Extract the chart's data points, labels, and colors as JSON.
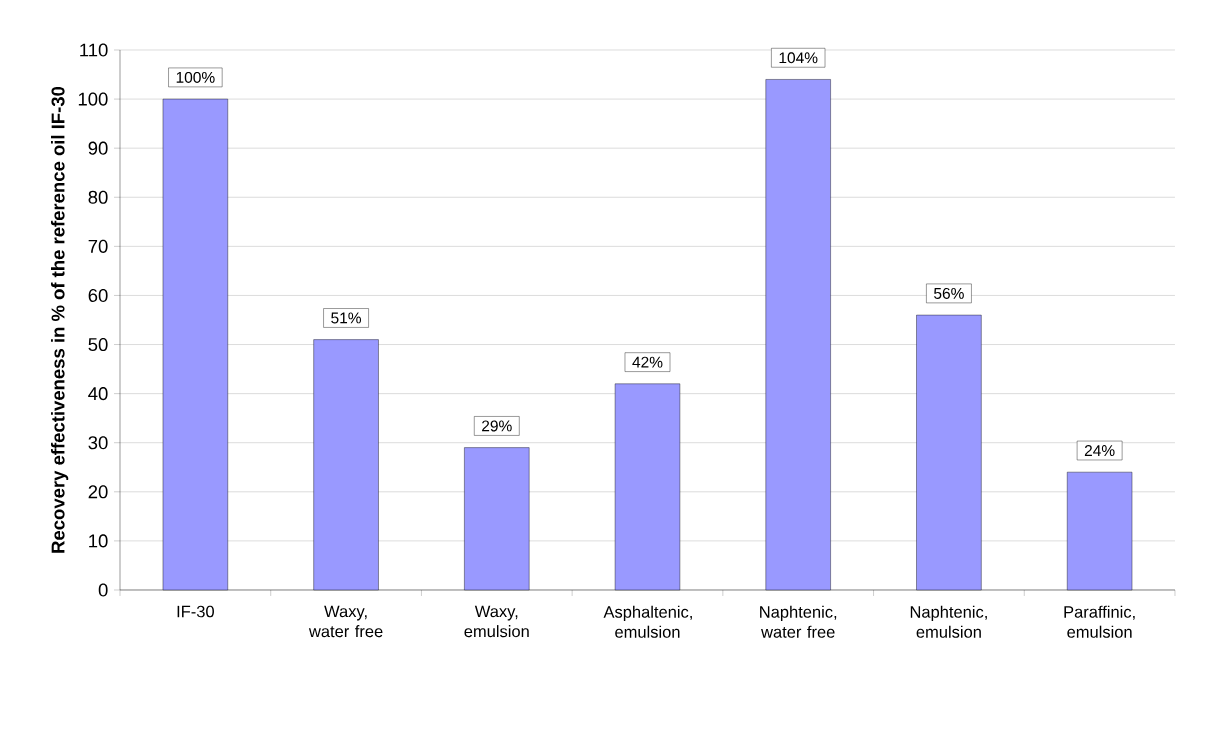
{
  "chart_data": {
    "type": "bar",
    "ylabel": "Recovery effectiveness in % of the reference oil IF-30",
    "categories": [
      "IF-30",
      "Waxy, water free",
      "Waxy, emulsion",
      "Asphaltenic, emulsion",
      "Naphtenic, water free",
      "Naphtenic, emulsion",
      "Paraffinic, emulsion"
    ],
    "values": [
      100,
      51,
      29,
      42,
      104,
      56,
      24
    ],
    "value_labels": [
      "100%",
      "51%",
      "29%",
      "42%",
      "104%",
      "56%",
      "24%"
    ],
    "color": "#9999ff",
    "ylim": [
      0,
      110
    ],
    "yticks": [
      0,
      10,
      20,
      30,
      40,
      50,
      60,
      70,
      80,
      90,
      100,
      110
    ],
    "grid": "y"
  }
}
